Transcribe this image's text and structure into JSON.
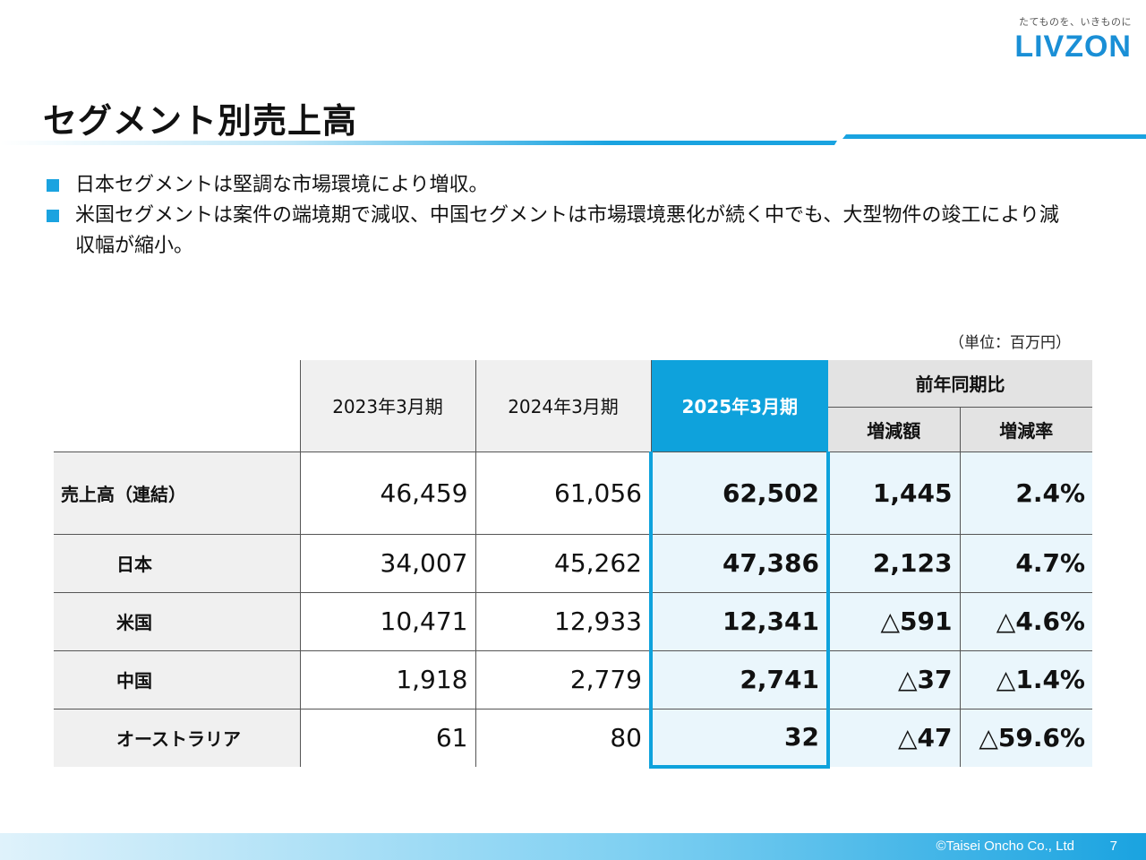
{
  "brand": {
    "tagline": "たてものを、いきものに",
    "logo": "LIVZON",
    "accent": "#1aa3e0"
  },
  "title": "セグメント別売上高",
  "bullets": [
    "日本セグメントは堅調な市場環境により増収。",
    "米国セグメントは案件の端境期で減収、中国セグメントは市場環境悪化が続く中でも、大型物件の竣工により減収幅が縮小。"
  ],
  "unit_note": "（単位：百万円）",
  "table": {
    "headers": {
      "col1": "2023年3月期",
      "col2": "2024年3月期",
      "col3": "2025年3月期",
      "yoy": "前年同期比",
      "change": "増減額",
      "rate": "増減率"
    },
    "rows": [
      {
        "label": "売上高（連結）",
        "y2023": "46,459",
        "y2024": "61,056",
        "y2025": "62,502",
        "change": "1,445",
        "rate": "2.4%"
      },
      {
        "label": "日本",
        "y2023": "34,007",
        "y2024": "45,262",
        "y2025": "47,386",
        "change": "2,123",
        "rate": "4.7%"
      },
      {
        "label": "米国",
        "y2023": "10,471",
        "y2024": "12,933",
        "y2025": "12,341",
        "change": "△591",
        "rate": "△4.6%"
      },
      {
        "label": "中国",
        "y2023": "1,918",
        "y2024": "2,779",
        "y2025": "2,741",
        "change": "△37",
        "rate": "△1.4%"
      },
      {
        "label": "オーストラリア",
        "y2023": "61",
        "y2024": "80",
        "y2025": "32",
        "change": "△47",
        "rate": "△59.6%"
      }
    ]
  },
  "footer": {
    "copyright": "©Taisei Oncho Co., Ltd",
    "page": "7"
  }
}
